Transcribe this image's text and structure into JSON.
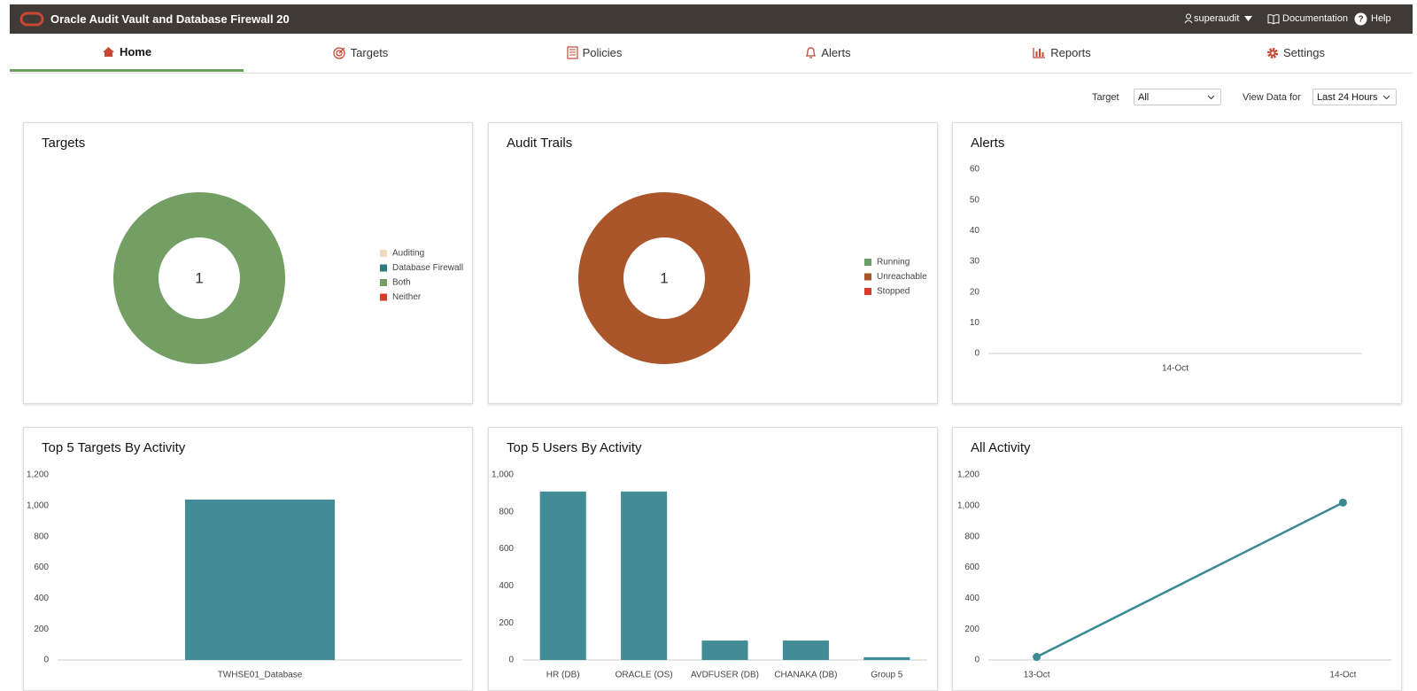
{
  "header": {
    "title": "Oracle Audit Vault and Database Firewall 20",
    "user": "superaudit",
    "documentation": "Documentation",
    "help": "Help"
  },
  "nav": {
    "items": [
      "Home",
      "Targets",
      "Policies",
      "Alerts",
      "Reports",
      "Settings"
    ]
  },
  "filters": [
    {
      "label": "Target",
      "value": "All"
    },
    {
      "label": "View Data for",
      "value": "Last 24 Hours"
    }
  ],
  "chart_data": [
    {
      "type": "donut",
      "title": "Targets",
      "total": 1,
      "categories": [
        "Auditing",
        "Database Firewall",
        "Both",
        "Neither"
      ],
      "values": [
        0,
        0,
        1,
        0
      ],
      "colors": [
        "#e8dcbc",
        "#2b7a7f",
        "#739e64",
        "#d53d2a"
      ]
    },
    {
      "type": "donut",
      "title": "Audit Trails",
      "total": 1,
      "categories": [
        "Running",
        "Unreachable",
        "Stopped"
      ],
      "values": [
        0,
        1,
        0
      ],
      "colors": [
        "#68a063",
        "#ab552b",
        "#d53d2a"
      ]
    },
    {
      "type": "line",
      "title": "Alerts",
      "categories": [
        "14-Oct"
      ],
      "values": [
        0
      ],
      "color": "#3b8a94",
      "markers": false,
      "ylim": [
        0,
        60
      ],
      "yticks": [
        0,
        10,
        20,
        30,
        40,
        50,
        60
      ]
    },
    {
      "type": "bar",
      "title": "Top 5 Targets By Activity",
      "categories": [
        "TWHSE01_Database"
      ],
      "values": [
        1040
      ],
      "color": "#418c97",
      "ylim": [
        0,
        1200
      ],
      "yticks": [
        0,
        200,
        400,
        600,
        800,
        {
          "value": 1000,
          "label": "1,000"
        },
        {
          "value": 1200,
          "label": "1,200"
        }
      ]
    },
    {
      "type": "bar",
      "title": "Top 5 Users By Activity",
      "categories": [
        "HR (DB)",
        "ORACLE (OS)",
        "AVDFUSER (DB)",
        "CHANAKA (DB)",
        "Group 5"
      ],
      "values": [
        910,
        910,
        105,
        105,
        15
      ],
      "color": "#418c97",
      "ylim": [
        0,
        1000
      ],
      "yticks": [
        0,
        200,
        400,
        600,
        800,
        {
          "value": 1000,
          "label": "1,000"
        }
      ]
    },
    {
      "type": "line",
      "title": "All Activity",
      "categories": [
        "13-Oct",
        "14-Oct"
      ],
      "values": [
        20,
        1020
      ],
      "color": "#3b8a94",
      "markers": true,
      "ylim": [
        0,
        1200
      ],
      "yticks": [
        0,
        200,
        400,
        600,
        800,
        {
          "value": 1000,
          "label": "1,000"
        },
        {
          "value": 1200,
          "label": "1,200"
        }
      ]
    }
  ]
}
